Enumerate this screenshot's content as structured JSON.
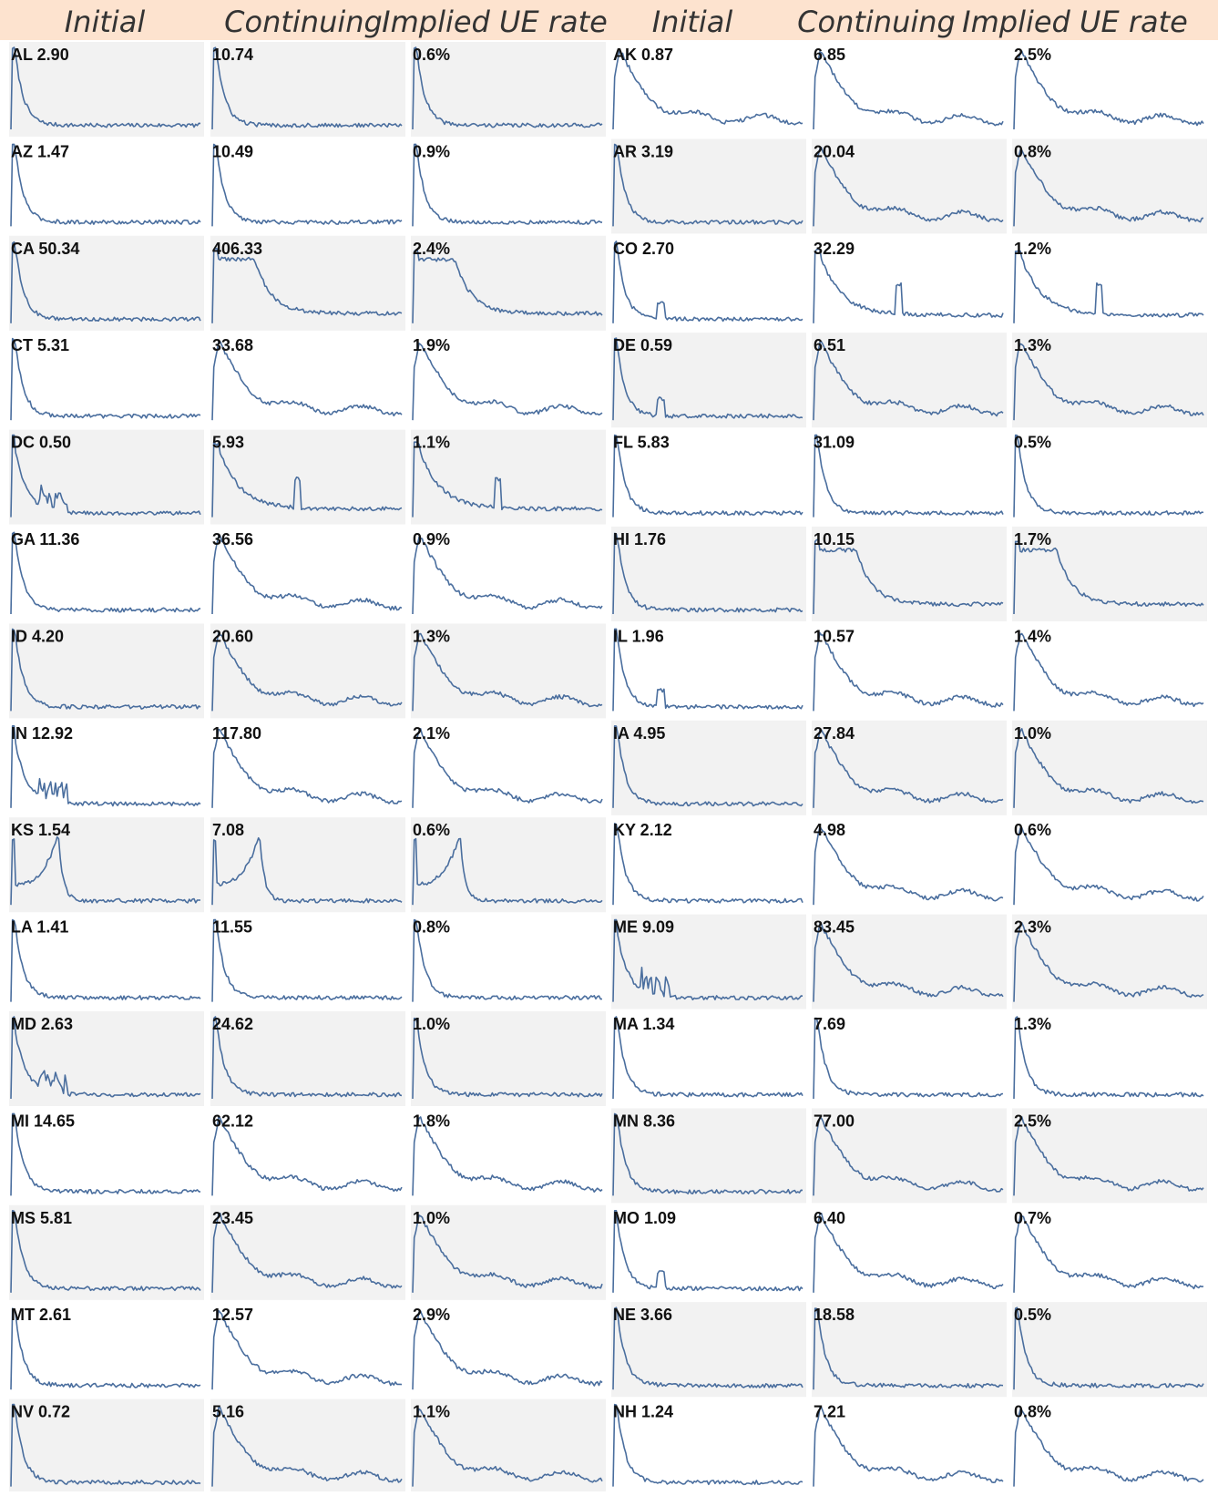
{
  "header": {
    "background": "#fde3cf",
    "left_group": [
      "Initial",
      "Continuing",
      "Implied UE rate"
    ],
    "right_group": [
      "Initial",
      "Continuing",
      "Implied UE rate"
    ]
  },
  "colors": {
    "line": "#4a6e9e",
    "shade": "#f2f2f2"
  },
  "chart_data": {
    "type": "line",
    "title": "",
    "columns": [
      "Initial",
      "Continuing",
      "Implied UE rate"
    ],
    "grid": false,
    "shaded_rows_note": "alternating grey row backgrounds",
    "series_profiles": "values normalized 0-1 over time, start at 0, spike early then decay",
    "rows": [
      {
        "state": "AL",
        "initial": "2.90",
        "continuing": "10.74",
        "rate": "0.6%",
        "shaded_left": true,
        "shaded_right": false,
        "profiles": [
          "decay",
          "decay",
          "decay",
          "slow",
          "slow",
          "slow"
        ]
      },
      {
        "state": "AZ",
        "initial": "1.47",
        "continuing": "10.49",
        "rate": "0.9%",
        "shaded_left": false,
        "shaded_right": true,
        "profiles": [
          "decay",
          "decay",
          "decay",
          "decay",
          "slow",
          "slow"
        ]
      },
      {
        "state": "CA",
        "initial": "50.34",
        "continuing": "406.33",
        "rate": "2.4%",
        "shaded_left": true,
        "shaded_right": false,
        "profiles": [
          "decay",
          "plateau",
          "plateau",
          "bump",
          "spike2",
          "spike2"
        ]
      },
      {
        "state": "CT",
        "initial": "5.31",
        "continuing": "33.68",
        "rate": "1.9%",
        "shaded_left": false,
        "shaded_right": true,
        "profiles": [
          "decay",
          "slow",
          "slow",
          "bump",
          "slow",
          "slow"
        ]
      },
      {
        "state": "DC",
        "initial": "0.50",
        "continuing": "5.93",
        "rate": "1.1%",
        "shaded_left": true,
        "shaded_right": false,
        "profiles": [
          "bumps",
          "spike2",
          "spike2",
          "decay",
          "decay",
          "decay"
        ]
      },
      {
        "state": "GA",
        "initial": "11.36",
        "continuing": "36.56",
        "rate": "0.9%",
        "shaded_left": false,
        "shaded_right": true,
        "profiles": [
          "decay",
          "slow",
          "slow",
          "decay",
          "plateau",
          "plateau"
        ]
      },
      {
        "state": "ID",
        "initial": "4.20",
        "continuing": "20.60",
        "rate": "1.3%",
        "shaded_left": true,
        "shaded_right": false,
        "profiles": [
          "decay",
          "slow",
          "slow",
          "bump",
          "slow",
          "slow"
        ]
      },
      {
        "state": "IN",
        "initial": "12.92",
        "continuing": "117.80",
        "rate": "2.1%",
        "shaded_left": false,
        "shaded_right": true,
        "profiles": [
          "bumps",
          "slow",
          "slow",
          "decay",
          "slow",
          "slow"
        ]
      },
      {
        "state": "KS",
        "initial": "1.54",
        "continuing": "7.08",
        "rate": "0.6%",
        "shaded_left": true,
        "shaded_right": false,
        "profiles": [
          "double",
          "double",
          "double",
          "decay",
          "slow",
          "slow"
        ]
      },
      {
        "state": "LA",
        "initial": "1.41",
        "continuing": "11.55",
        "rate": "0.8%",
        "shaded_left": false,
        "shaded_right": true,
        "profiles": [
          "decay",
          "decay",
          "decay",
          "bumps",
          "slow",
          "slow"
        ]
      },
      {
        "state": "MD",
        "initial": "2.63",
        "continuing": "24.62",
        "rate": "1.0%",
        "shaded_left": true,
        "shaded_right": false,
        "profiles": [
          "bumps",
          "decay",
          "decay",
          "decay",
          "decay",
          "decay"
        ]
      },
      {
        "state": "MI",
        "initial": "14.65",
        "continuing": "62.12",
        "rate": "1.8%",
        "shaded_left": false,
        "shaded_right": true,
        "profiles": [
          "decay",
          "slow",
          "slow",
          "decay",
          "slow",
          "slow"
        ]
      },
      {
        "state": "MS",
        "initial": "5.81",
        "continuing": "23.45",
        "rate": "1.0%",
        "shaded_left": true,
        "shaded_right": false,
        "profiles": [
          "decay",
          "slow",
          "slow",
          "bump",
          "slow",
          "slow"
        ]
      },
      {
        "state": "MT",
        "initial": "2.61",
        "continuing": "12.57",
        "rate": "2.9%",
        "shaded_left": false,
        "shaded_right": true,
        "profiles": [
          "decay",
          "slow",
          "slow",
          "decay",
          "decay",
          "decay"
        ]
      },
      {
        "state": "NV",
        "initial": "0.72",
        "continuing": "5.16",
        "rate": "1.1%",
        "shaded_left": true,
        "shaded_right": false,
        "profiles": [
          "decay",
          "slow",
          "slow",
          "decay",
          "slow",
          "slow"
        ]
      }
    ],
    "rows_right": [
      {
        "state": "AK",
        "initial": "0.87",
        "continuing": "6.85",
        "rate": "2.5%"
      },
      {
        "state": "AR",
        "initial": "3.19",
        "continuing": "20.04",
        "rate": "0.8%"
      },
      {
        "state": "CO",
        "initial": "2.70",
        "continuing": "32.29",
        "rate": "1.2%"
      },
      {
        "state": "DE",
        "initial": "0.59",
        "continuing": "6.51",
        "rate": "1.3%"
      },
      {
        "state": "FL",
        "initial": "5.83",
        "continuing": "31.09",
        "rate": "0.5%"
      },
      {
        "state": "HI",
        "initial": "1.76",
        "continuing": "10.15",
        "rate": "1.7%"
      },
      {
        "state": "IL",
        "initial": "1.96",
        "continuing": "10.57",
        "rate": "1.4%"
      },
      {
        "state": "IA",
        "initial": "4.95",
        "continuing": "27.84",
        "rate": "1.0%"
      },
      {
        "state": "KY",
        "initial": "2.12",
        "continuing": "4.98",
        "rate": "0.6%"
      },
      {
        "state": "ME",
        "initial": "9.09",
        "continuing": "83.45",
        "rate": "2.3%"
      },
      {
        "state": "MA",
        "initial": "1.34",
        "continuing": "7.69",
        "rate": "1.3%"
      },
      {
        "state": "MN",
        "initial": "8.36",
        "continuing": "77.00",
        "rate": "2.5%"
      },
      {
        "state": "MO",
        "initial": "1.09",
        "continuing": "6.40",
        "rate": "0.7%"
      },
      {
        "state": "NE",
        "initial": "3.66",
        "continuing": "18.58",
        "rate": "0.5%"
      },
      {
        "state": "NH",
        "initial": "1.24",
        "continuing": "7.21",
        "rate": "0.8%"
      }
    ]
  }
}
